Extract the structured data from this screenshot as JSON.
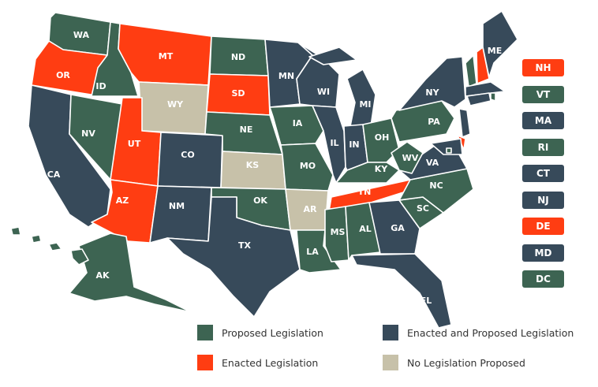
{
  "colors": {
    "proposed": "#3d6452",
    "enacted_and_proposed": "#374a5a",
    "enacted": "#ff3d12",
    "none": "#c7c1a9"
  },
  "states": [
    {
      "code": "WA",
      "status": "proposed"
    },
    {
      "code": "OR",
      "status": "enacted"
    },
    {
      "code": "CA",
      "status": "enacted_and_proposed"
    },
    {
      "code": "ID",
      "status": "proposed"
    },
    {
      "code": "NV",
      "status": "proposed"
    },
    {
      "code": "MT",
      "status": "enacted"
    },
    {
      "code": "WY",
      "status": "none"
    },
    {
      "code": "UT",
      "status": "enacted"
    },
    {
      "code": "AZ",
      "status": "enacted"
    },
    {
      "code": "CO",
      "status": "enacted_and_proposed"
    },
    {
      "code": "NM",
      "status": "enacted_and_proposed"
    },
    {
      "code": "ND",
      "status": "proposed"
    },
    {
      "code": "SD",
      "status": "enacted"
    },
    {
      "code": "NE",
      "status": "proposed"
    },
    {
      "code": "KS",
      "status": "none"
    },
    {
      "code": "OK",
      "status": "proposed"
    },
    {
      "code": "TX",
      "status": "enacted_and_proposed"
    },
    {
      "code": "MN",
      "status": "enacted_and_proposed"
    },
    {
      "code": "IA",
      "status": "proposed"
    },
    {
      "code": "MO",
      "status": "proposed"
    },
    {
      "code": "AR",
      "status": "none"
    },
    {
      "code": "LA",
      "status": "proposed"
    },
    {
      "code": "WI",
      "status": "enacted_and_proposed"
    },
    {
      "code": "IL",
      "status": "enacted_and_proposed"
    },
    {
      "code": "MI",
      "status": "enacted_and_proposed"
    },
    {
      "code": "IN",
      "status": "enacted_and_proposed"
    },
    {
      "code": "OH",
      "status": "proposed"
    },
    {
      "code": "KY",
      "status": "proposed"
    },
    {
      "code": "TN",
      "status": "enacted"
    },
    {
      "code": "MS",
      "status": "proposed"
    },
    {
      "code": "AL",
      "status": "proposed"
    },
    {
      "code": "GA",
      "status": "enacted_and_proposed"
    },
    {
      "code": "FL",
      "status": "enacted_and_proposed"
    },
    {
      "code": "SC",
      "status": "proposed"
    },
    {
      "code": "NC",
      "status": "proposed"
    },
    {
      "code": "VA",
      "status": "enacted_and_proposed"
    },
    {
      "code": "WV",
      "status": "proposed"
    },
    {
      "code": "PA",
      "status": "proposed"
    },
    {
      "code": "NY",
      "status": "enacted_and_proposed"
    },
    {
      "code": "ME",
      "status": "enacted_and_proposed"
    },
    {
      "code": "AK",
      "status": "proposed"
    },
    {
      "code": "HI",
      "status": "proposed"
    }
  ],
  "small_states": [
    {
      "code": "NH",
      "status": "enacted"
    },
    {
      "code": "VT",
      "status": "proposed"
    },
    {
      "code": "MA",
      "status": "enacted_and_proposed"
    },
    {
      "code": "RI",
      "status": "proposed"
    },
    {
      "code": "CT",
      "status": "enacted_and_proposed"
    },
    {
      "code": "NJ",
      "status": "enacted_and_proposed"
    },
    {
      "code": "DE",
      "status": "enacted"
    },
    {
      "code": "MD",
      "status": "enacted_and_proposed"
    },
    {
      "code": "DC",
      "status": "proposed"
    }
  ],
  "legend": [
    {
      "label": "Proposed Legislation",
      "status": "proposed"
    },
    {
      "label": "Enacted and Proposed Legislation",
      "status": "enacted_and_proposed"
    },
    {
      "label": "Enacted Legislation",
      "status": "enacted"
    },
    {
      "label": "No Legislation Proposed",
      "status": "none"
    }
  ]
}
